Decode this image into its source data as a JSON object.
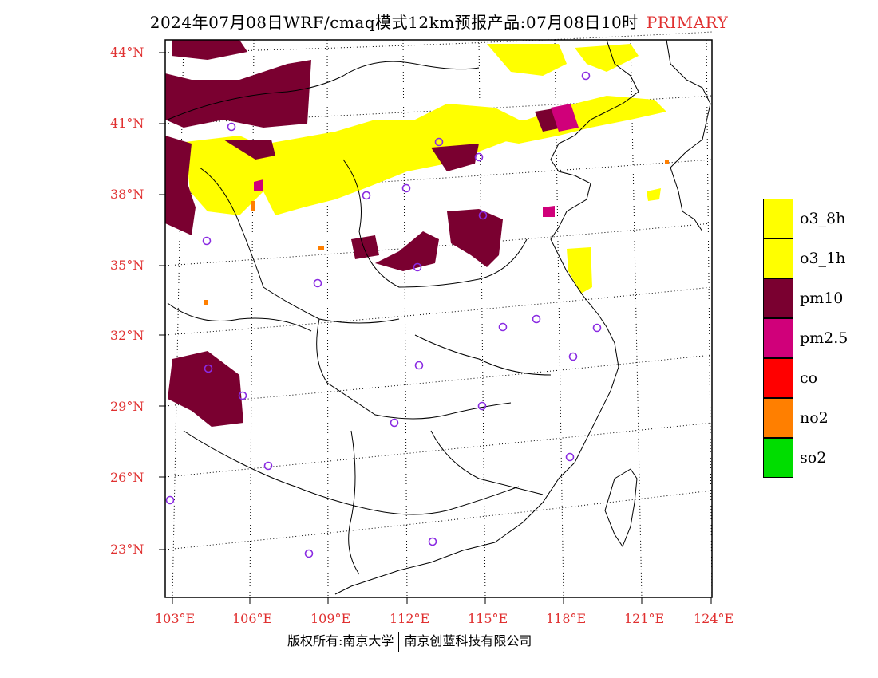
{
  "title": {
    "main": "2024年07月08日WRF/cmaq模式12km预报产品:07月08日10时",
    "tag": "PRIMARY"
  },
  "axes": {
    "lat_labels": [
      "44°N",
      "41°N",
      "38°N",
      "35°N",
      "32°N",
      "29°N",
      "26°N",
      "23°N"
    ],
    "lon_labels": [
      "103°E",
      "106°E",
      "109°E",
      "112°E",
      "115°E",
      "118°E",
      "121°E",
      "124°E"
    ]
  },
  "legend": [
    {
      "label": "o3_8h",
      "color": "#ffff00"
    },
    {
      "label": "o3_1h",
      "color": "#ffff00"
    },
    {
      "label": "pm10",
      "color": "#7a0030"
    },
    {
      "label": "pm2.5",
      "color": "#d0007a"
    },
    {
      "label": "co",
      "color": "#ff0000"
    },
    {
      "label": "no2",
      "color": "#ff7f00"
    },
    {
      "label": "so2",
      "color": "#00dd00"
    }
  ],
  "footer": {
    "left": "版权所有:南京大学",
    "right": "南京创蓝科技有限公司"
  },
  "colors": {
    "axis_label": "#e03030",
    "station_marker": "#8a2be2"
  }
}
